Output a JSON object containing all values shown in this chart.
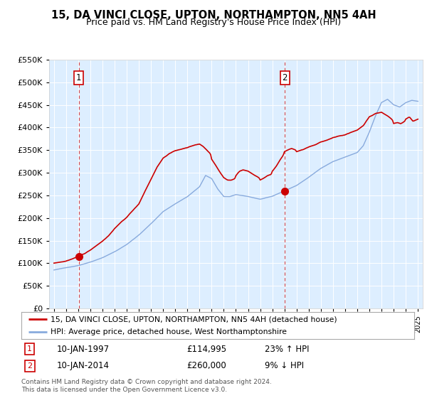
{
  "title": "15, DA VINCI CLOSE, UPTON, NORTHAMPTON, NN5 4AH",
  "subtitle": "Price paid vs. HM Land Registry's House Price Index (HPI)",
  "legend_line1": "15, DA VINCI CLOSE, UPTON, NORTHAMPTON, NN5 4AH (detached house)",
  "legend_line2": "HPI: Average price, detached house, West Northamptonshire",
  "footer": "Contains HM Land Registry data © Crown copyright and database right 2024.\nThis data is licensed under the Open Government Licence v3.0.",
  "sale1_label": "1",
  "sale1_date": "10-JAN-1997",
  "sale1_price": "£114,995",
  "sale1_hpi": "23% ↑ HPI",
  "sale2_label": "2",
  "sale2_date": "10-JAN-2014",
  "sale2_price": "£260,000",
  "sale2_hpi": "9% ↓ HPI",
  "sale1_x": 1997.04,
  "sale1_y": 114995,
  "sale2_x": 2014.04,
  "sale2_y": 260000,
  "property_color": "#cc0000",
  "hpi_color": "#88aadd",
  "marker_color": "#cc0000",
  "vline_color": "#cc0000",
  "ylim": [
    0,
    550000
  ],
  "xlim": [
    1994.6,
    2025.4
  ],
  "plot_bg_color": "#ddeeff",
  "grid_color": "#ffffff",
  "fig_bg_color": "#ffffff"
}
